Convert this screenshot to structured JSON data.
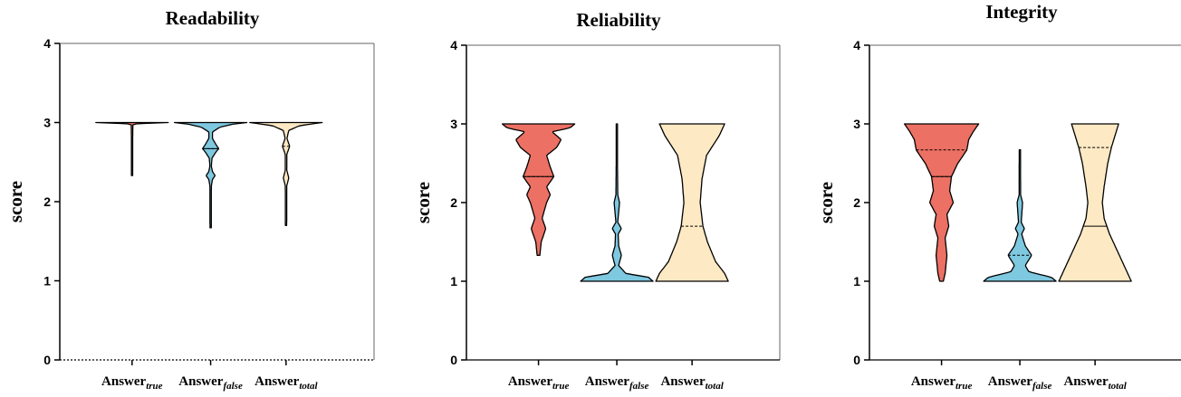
{
  "colors": {
    "true": "#ec7063",
    "false": "#7ec8e0",
    "total": "#fde9c3",
    "outline": "#000000"
  },
  "chart_data": [
    {
      "type": "violin",
      "title": "Readability",
      "ylabel": "score",
      "ylim": [
        0,
        4
      ],
      "yticks": [
        "0",
        "1",
        "2",
        "3",
        "4"
      ],
      "grid": false,
      "baseline_dotted_at": 0,
      "categories": [
        {
          "base": "Answer",
          "sub": "true",
          "series": "true"
        },
        {
          "base": "Answer",
          "sub": "false",
          "series": "false"
        },
        {
          "base": "Answer",
          "sub": "total",
          "series": "total"
        }
      ],
      "violins": [
        {
          "series": "true",
          "median": 3.0,
          "quartiles": [
            3.0,
            3.0
          ],
          "profile": [
            [
              2.33,
              0.7
            ],
            [
              2.5,
              0.7
            ],
            [
              2.8,
              0.7
            ],
            [
              2.97,
              0.9
            ],
            [
              2.985,
              5
            ],
            [
              3.0,
              40
            ]
          ]
        },
        {
          "series": "false",
          "median": 2.67,
          "quartiles": [
            2.67,
            3.0
          ],
          "profile": [
            [
              1.67,
              0.7
            ],
            [
              2.2,
              0.8
            ],
            [
              2.28,
              2
            ],
            [
              2.33,
              5
            ],
            [
              2.38,
              2
            ],
            [
              2.45,
              0.8
            ],
            [
              2.55,
              1.5
            ],
            [
              2.63,
              6
            ],
            [
              2.67,
              9
            ],
            [
              2.72,
              6
            ],
            [
              2.8,
              2
            ],
            [
              2.88,
              2
            ],
            [
              2.94,
              10
            ],
            [
              2.98,
              25
            ],
            [
              3.0,
              40
            ]
          ]
        },
        {
          "series": "total",
          "median": 3.0,
          "quartiles": [
            2.7,
            3.0
          ],
          "profile": [
            [
              1.7,
              0.7
            ],
            [
              2.2,
              0.8
            ],
            [
              2.3,
              3
            ],
            [
              2.4,
              0.8
            ],
            [
              2.6,
              0.9
            ],
            [
              2.7,
              4
            ],
            [
              2.8,
              1
            ],
            [
              2.9,
              3
            ],
            [
              2.96,
              15
            ],
            [
              3.0,
              40
            ]
          ]
        }
      ]
    },
    {
      "type": "violin",
      "title": "Reliability",
      "ylabel": "score",
      "ylim": [
        0,
        4
      ],
      "yticks": [
        "0",
        "1",
        "2",
        "3",
        "4"
      ],
      "grid": false,
      "categories": [
        {
          "base": "Answer",
          "sub": "true",
          "series": "true"
        },
        {
          "base": "Answer",
          "sub": "false",
          "series": "false"
        },
        {
          "base": "Answer",
          "sub": "total",
          "series": "total"
        }
      ],
      "violins": [
        {
          "series": "true",
          "median": 2.33,
          "quartiles": [
            2.33,
            3.0
          ],
          "profile": [
            [
              1.33,
              1.5
            ],
            [
              1.5,
              3
            ],
            [
              1.6,
              6
            ],
            [
              1.67,
              8
            ],
            [
              1.8,
              4
            ],
            [
              2.0,
              9
            ],
            [
              2.1,
              13
            ],
            [
              2.2,
              9
            ],
            [
              2.33,
              17
            ],
            [
              2.45,
              13
            ],
            [
              2.6,
              9
            ],
            [
              2.7,
              20
            ],
            [
              2.8,
              25
            ],
            [
              2.9,
              15
            ],
            [
              2.95,
              35
            ],
            [
              3.0,
              40
            ]
          ]
        },
        {
          "series": "false",
          "median": 1.0,
          "quartiles": [
            1.0,
            1.0
          ],
          "profile": [
            [
              1.0,
              40
            ],
            [
              1.05,
              35
            ],
            [
              1.1,
              10
            ],
            [
              1.2,
              2
            ],
            [
              1.33,
              5
            ],
            [
              1.45,
              2
            ],
            [
              1.6,
              1.5
            ],
            [
              1.67,
              5
            ],
            [
              1.75,
              1
            ],
            [
              2.0,
              3
            ],
            [
              2.1,
              1
            ],
            [
              2.5,
              0.7
            ],
            [
              3.0,
              0.7
            ]
          ]
        },
        {
          "series": "total",
          "median": 1.0,
          "quartiles": [
            1.0,
            1.7
          ],
          "profile": [
            [
              1.0,
              40
            ],
            [
              1.1,
              36
            ],
            [
              1.25,
              26
            ],
            [
              1.5,
              17
            ],
            [
              1.7,
              12
            ],
            [
              2.0,
              9
            ],
            [
              2.3,
              11
            ],
            [
              2.6,
              16
            ],
            [
              2.85,
              30
            ],
            [
              3.0,
              36
            ]
          ]
        }
      ]
    },
    {
      "type": "violin",
      "title": "Integrity",
      "ylabel": "score",
      "ylim": [
        0,
        4
      ],
      "yticks": [
        "0",
        "1",
        "2",
        "3",
        "4"
      ],
      "grid": false,
      "categories": [
        {
          "base": "Answer",
          "sub": "true",
          "series": "true"
        },
        {
          "base": "Answer",
          "sub": "false",
          "series": "false"
        },
        {
          "base": "Answer",
          "sub": "total",
          "series": "total"
        }
      ],
      "violins": [
        {
          "series": "true",
          "median": 2.33,
          "quartiles": [
            2.33,
            2.67
          ],
          "profile": [
            [
              1.0,
              2
            ],
            [
              1.1,
              4
            ],
            [
              1.33,
              6
            ],
            [
              1.55,
              4
            ],
            [
              1.7,
              8
            ],
            [
              1.85,
              6
            ],
            [
              2.0,
              13
            ],
            [
              2.15,
              9
            ],
            [
              2.33,
              11
            ],
            [
              2.5,
              18
            ],
            [
              2.6,
              24
            ],
            [
              2.67,
              28
            ],
            [
              2.8,
              30
            ],
            [
              2.9,
              35
            ],
            [
              3.0,
              41
            ]
          ]
        },
        {
          "series": "false",
          "median": 1.0,
          "quartiles": [
            1.0,
            1.33
          ],
          "profile": [
            [
              1.0,
              40
            ],
            [
              1.05,
              35
            ],
            [
              1.12,
              10
            ],
            [
              1.2,
              6
            ],
            [
              1.33,
              13
            ],
            [
              1.45,
              6
            ],
            [
              1.6,
              2
            ],
            [
              1.67,
              5
            ],
            [
              1.75,
              1.5
            ],
            [
              2.0,
              3
            ],
            [
              2.1,
              0.8
            ],
            [
              2.67,
              0.7
            ]
          ]
        },
        {
          "series": "total",
          "median": 1.7,
          "quartiles": [
            1.0,
            2.7
          ],
          "profile": [
            [
              1.0,
              40
            ],
            [
              1.1,
              36
            ],
            [
              1.3,
              28
            ],
            [
              1.6,
              16
            ],
            [
              1.8,
              10
            ],
            [
              2.0,
              8
            ],
            [
              2.2,
              10
            ],
            [
              2.5,
              14
            ],
            [
              2.7,
              18
            ],
            [
              2.85,
              22
            ],
            [
              3.0,
              26
            ]
          ]
        }
      ]
    }
  ]
}
